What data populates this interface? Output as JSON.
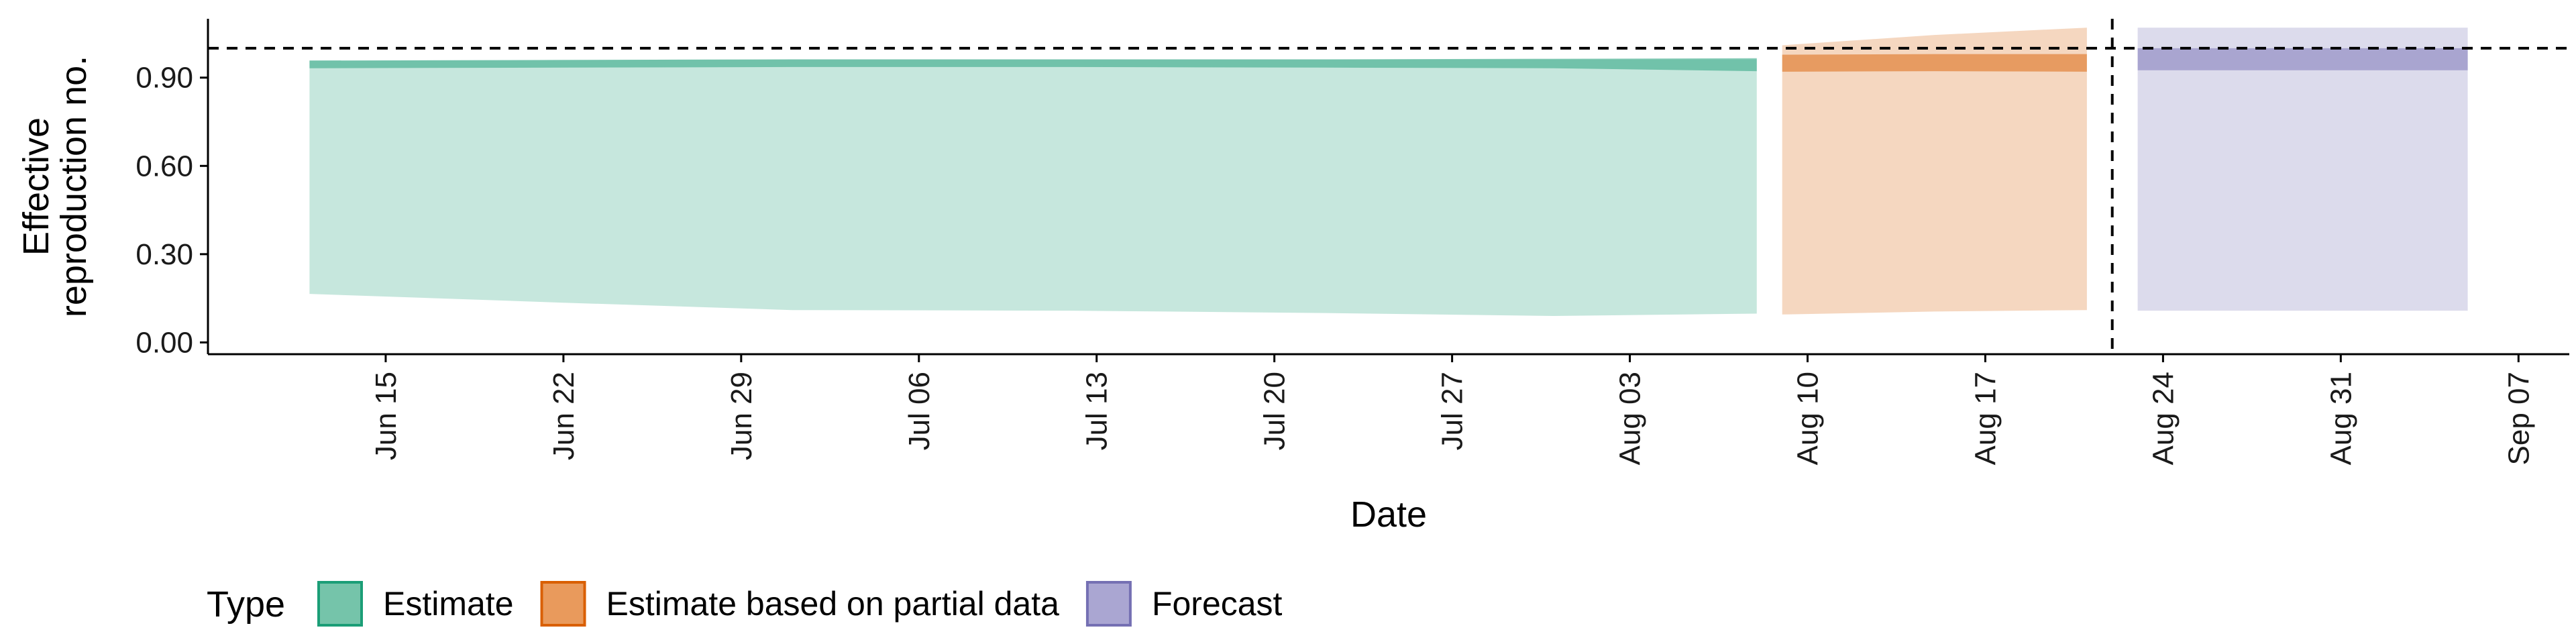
{
  "chart_data": {
    "type": "area",
    "xlabel": "Date",
    "ylabel_lines": [
      "Effective",
      "reproduction no."
    ],
    "ylim": [
      -0.04,
      1.1
    ],
    "xlim": [
      "2020-06-08",
      "2020-09-09"
    ],
    "y_ticks": [
      {
        "value": 0.0,
        "label": "0.00"
      },
      {
        "value": 0.3,
        "label": "0.30"
      },
      {
        "value": 0.6,
        "label": "0.60"
      },
      {
        "value": 0.9,
        "label": "0.90"
      }
    ],
    "x_ticks": [
      {
        "date": "2020-06-15",
        "label": "Jun 15"
      },
      {
        "date": "2020-06-22",
        "label": "Jun 22"
      },
      {
        "date": "2020-06-29",
        "label": "Jun 29"
      },
      {
        "date": "2020-07-06",
        "label": "Jul 06"
      },
      {
        "date": "2020-07-13",
        "label": "Jul 13"
      },
      {
        "date": "2020-07-20",
        "label": "Jul 20"
      },
      {
        "date": "2020-07-27",
        "label": "Jul 27"
      },
      {
        "date": "2020-08-03",
        "label": "Aug 03"
      },
      {
        "date": "2020-08-10",
        "label": "Aug 10"
      },
      {
        "date": "2020-08-17",
        "label": "Aug 17"
      },
      {
        "date": "2020-08-24",
        "label": "Aug 24"
      },
      {
        "date": "2020-08-31",
        "label": "Aug 31"
      },
      {
        "date": "2020-09-07",
        "label": "Sep 07"
      }
    ],
    "hline": 1.0,
    "vline": "2020-08-22",
    "series": [
      {
        "name": "Estimate",
        "color": "#1b9e77",
        "outer": [
          {
            "x": "2020-06-12",
            "lo": 0.165,
            "hi": 0.958
          },
          {
            "x": "2020-06-22",
            "lo": 0.135,
            "hi": 0.96
          },
          {
            "x": "2020-07-01",
            "lo": 0.11,
            "hi": 0.962
          },
          {
            "x": "2020-07-12",
            "lo": 0.108,
            "hi": 0.962
          },
          {
            "x": "2020-07-22",
            "lo": 0.1,
            "hi": 0.962
          },
          {
            "x": "2020-07-31",
            "lo": 0.09,
            "hi": 0.962
          },
          {
            "x": "2020-08-08",
            "lo": 0.098,
            "hi": 0.962
          }
        ],
        "inner": [
          {
            "x": "2020-06-12",
            "lo": 0.932,
            "hi": 0.958
          },
          {
            "x": "2020-06-22",
            "lo": 0.934,
            "hi": 0.96
          },
          {
            "x": "2020-07-01",
            "lo": 0.936,
            "hi": 0.962
          },
          {
            "x": "2020-07-12",
            "lo": 0.936,
            "hi": 0.962
          },
          {
            "x": "2020-07-22",
            "lo": 0.934,
            "hi": 0.962
          },
          {
            "x": "2020-07-31",
            "lo": 0.932,
            "hi": 0.964
          },
          {
            "x": "2020-08-08",
            "lo": 0.922,
            "hi": 0.966
          }
        ]
      },
      {
        "name": "Estimate based on partial data",
        "color": "#d95f02",
        "outer": [
          {
            "x": "2020-08-09",
            "lo": 0.095,
            "hi": 1.01
          },
          {
            "x": "2020-08-15",
            "lo": 0.105,
            "hi": 1.045
          },
          {
            "x": "2020-08-21",
            "lo": 0.11,
            "hi": 1.07
          }
        ],
        "inner": [
          {
            "x": "2020-08-09",
            "lo": 0.92,
            "hi": 0.978
          },
          {
            "x": "2020-08-15",
            "lo": 0.922,
            "hi": 0.98
          },
          {
            "x": "2020-08-21",
            "lo": 0.92,
            "hi": 0.98
          }
        ]
      },
      {
        "name": "Forecast",
        "color": "#7570b3",
        "outer": [
          {
            "x": "2020-08-23",
            "lo": 0.108,
            "hi": 1.07
          },
          {
            "x": "2020-09-05",
            "lo": 0.108,
            "hi": 1.07
          }
        ],
        "inner": [
          {
            "x": "2020-08-23",
            "lo": 0.925,
            "hi": 1.0
          },
          {
            "x": "2020-09-05",
            "lo": 0.925,
            "hi": 1.0
          }
        ]
      }
    ],
    "legend": {
      "title": "Type",
      "placement": "bottom-left",
      "items": [
        {
          "name": "Estimate",
          "fill": "#75c4aa",
          "stroke": "#1b9e77"
        },
        {
          "name": "Estimate based on partial data",
          "fill": "#e99a5c",
          "stroke": "#d95f02"
        },
        {
          "name": "Forecast",
          "fill": "#aaa6d2",
          "stroke": "#7570b3"
        }
      ]
    }
  }
}
